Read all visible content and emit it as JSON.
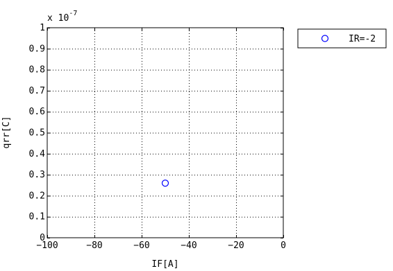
{
  "chart_data": {
    "type": "scatter",
    "title": "",
    "xlabel": "IF[A]",
    "ylabel": "qrr[C]",
    "xlim": [
      -100,
      0
    ],
    "ylim": [
      0,
      1
    ],
    "y_multiplier_text": "x 10",
    "y_multiplier_exponent": "-7",
    "x_ticks": [
      -100,
      -80,
      -60,
      -40,
      -20,
      0
    ],
    "x_tick_labels": [
      "−100",
      "−80",
      "−60",
      "−40",
      "−20",
      "0"
    ],
    "y_ticks": [
      0,
      0.1,
      0.2,
      0.3,
      0.4,
      0.5,
      0.6,
      0.7,
      0.8,
      0.9,
      1
    ],
    "y_tick_labels": [
      "0",
      "0.1",
      "0.2",
      "0.3",
      "0.4",
      "0.5",
      "0.6",
      "0.7",
      "0.8",
      "0.9",
      "1"
    ],
    "grid": true,
    "legend_position": "outside-top-right",
    "series": [
      {
        "name": "IR=-2",
        "marker": "circle",
        "color": "#0000ff",
        "points": [
          {
            "x": -50,
            "y": 0.26
          }
        ]
      }
    ]
  }
}
